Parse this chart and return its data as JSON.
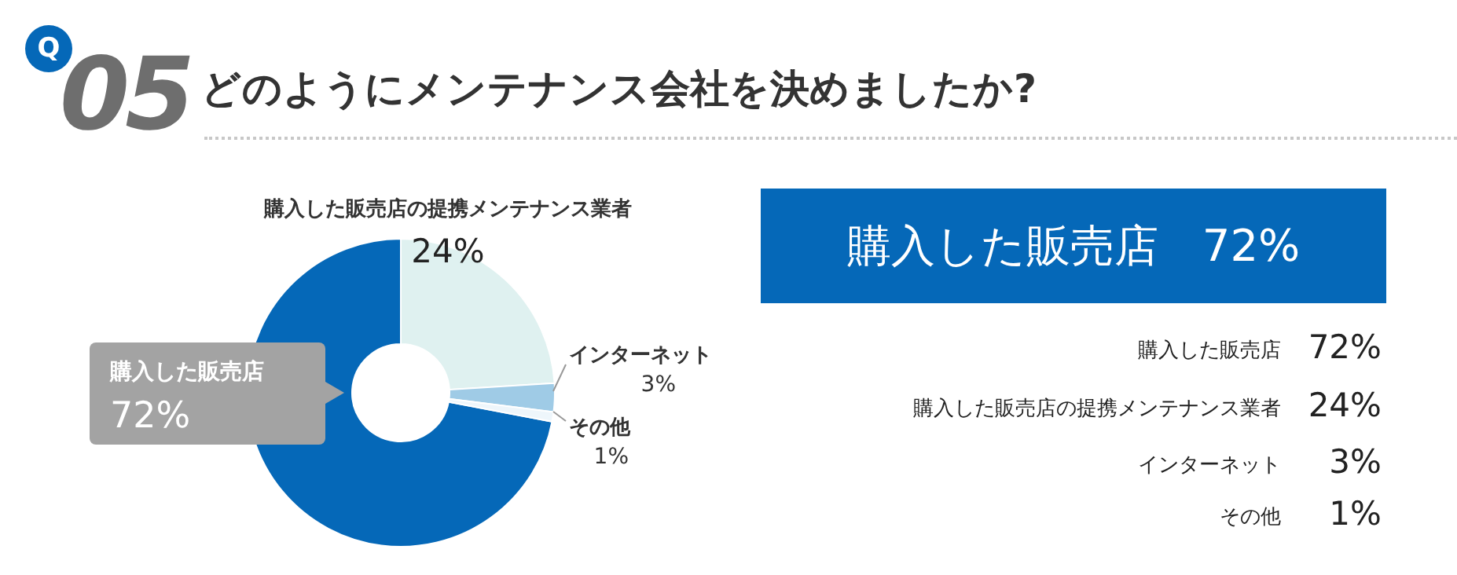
{
  "chart_data": {
    "type": "donut",
    "title": "どのようにメンテナンス会社を決めましたか?",
    "categories": [
      "購入した販売店",
      "購入した販売店の提携メンテナンス業者",
      "インターネット",
      "その他"
    ],
    "values": [
      72,
      24,
      3,
      1
    ],
    "value_labels": [
      "72%",
      "24%",
      "3%",
      "1%"
    ],
    "colors": [
      "#0568b8",
      "#dff1f0",
      "#9fcbe6",
      "#eef6fb"
    ],
    "annotations": [
      "Q",
      "05",
      "購入した販売店　72%"
    ]
  }
}
